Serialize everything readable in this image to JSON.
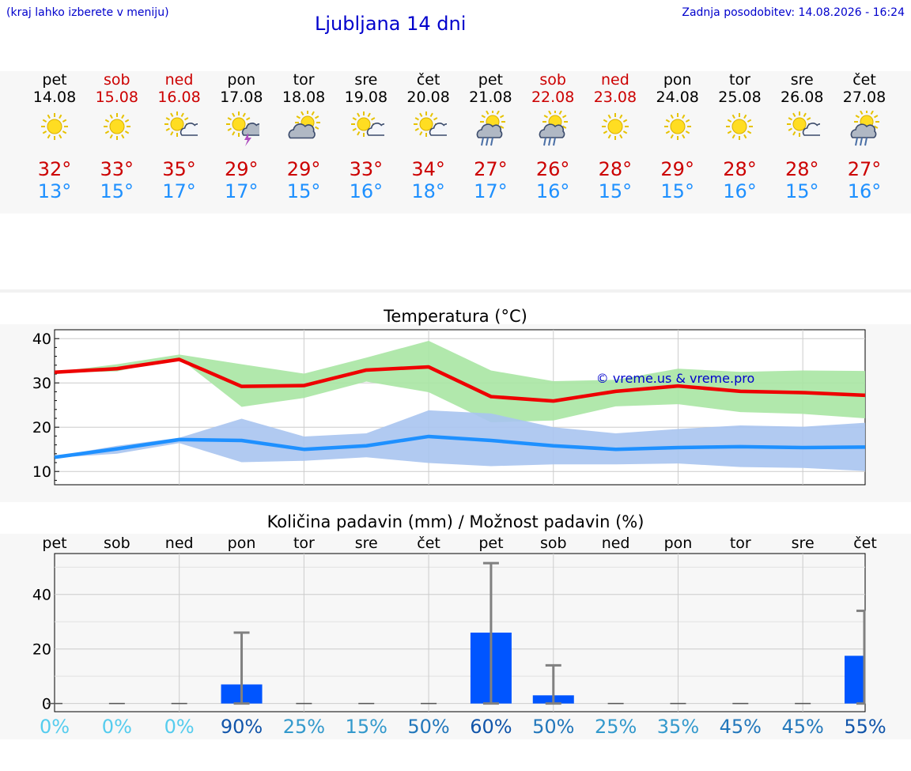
{
  "header": {
    "hint": "(kraj lahko izberete v meniju)",
    "title": "Ljubljana 14 dni",
    "updated": "Zadnja posodobitev: 14.08.2026 - 16:24"
  },
  "days": [
    {
      "name": "pet",
      "date": "14.08",
      "weekend": false,
      "icon": "sun-icon",
      "max": "32°",
      "min": "13°"
    },
    {
      "name": "sob",
      "date": "15.08",
      "weekend": true,
      "icon": "sun-icon",
      "max": "33°",
      "min": "15°"
    },
    {
      "name": "ned",
      "date": "16.08",
      "weekend": true,
      "icon": "sun-cloud-icon",
      "max": "35°",
      "min": "17°"
    },
    {
      "name": "pon",
      "date": "17.08",
      "weekend": false,
      "icon": "sun-cloud-thunder-icon",
      "max": "29°",
      "min": "17°"
    },
    {
      "name": "tor",
      "date": "18.08",
      "weekend": false,
      "icon": "cloud-sun-icon",
      "max": "29°",
      "min": "15°"
    },
    {
      "name": "sre",
      "date": "19.08",
      "weekend": false,
      "icon": "sun-cloud-icon",
      "max": "33°",
      "min": "16°"
    },
    {
      "name": "čet",
      "date": "20.08",
      "weekend": false,
      "icon": "sun-cloud-icon",
      "max": "34°",
      "min": "18°"
    },
    {
      "name": "pet",
      "date": "21.08",
      "weekend": false,
      "icon": "sun-cloud-rain-icon",
      "max": "27°",
      "min": "17°"
    },
    {
      "name": "sob",
      "date": "22.08",
      "weekend": true,
      "icon": "sun-cloud-rain-icon",
      "max": "26°",
      "min": "16°"
    },
    {
      "name": "ned",
      "date": "23.08",
      "weekend": true,
      "icon": "sun-icon",
      "max": "28°",
      "min": "15°"
    },
    {
      "name": "pon",
      "date": "24.08",
      "weekend": false,
      "icon": "sun-icon",
      "max": "29°",
      "min": "15°"
    },
    {
      "name": "tor",
      "date": "25.08",
      "weekend": false,
      "icon": "sun-icon",
      "max": "28°",
      "min": "16°"
    },
    {
      "name": "sre",
      "date": "26.08",
      "weekend": false,
      "icon": "sun-cloud-icon",
      "max": "28°",
      "min": "15°"
    },
    {
      "name": "čet",
      "date": "27.08",
      "weekend": false,
      "icon": "sun-cloud-rain-icon",
      "max": "27°",
      "min": "16°"
    }
  ],
  "colors": {
    "max_line": "#ee0000",
    "max_band": "#a8e6a3",
    "min_line": "#1e90ff",
    "min_band": "#a8c4f0",
    "bar": "#0055ff",
    "whisker": "#808080",
    "weekend": "#cc0000",
    "title": "#0000cc"
  },
  "watermark": "© vreme.us & vreme.pro",
  "chart_data": [
    {
      "type": "line",
      "title": "Temperatura (°C)",
      "x": [
        "pet",
        "sob",
        "ned",
        "pon",
        "tor",
        "sre",
        "čet",
        "pet",
        "sob",
        "ned",
        "pon",
        "tor",
        "sre",
        "čet"
      ],
      "ylim": [
        7,
        42
      ],
      "yticks": [
        10,
        20,
        30,
        40
      ],
      "grid": true,
      "series": [
        {
          "role": "max",
          "values": [
            32.4,
            33.2,
            35.3,
            29.2,
            29.4,
            32.9,
            33.6,
            26.9,
            25.9,
            28.1,
            29.3,
            28.1,
            27.8,
            27.2
          ],
          "band_low": [
            32.3,
            32.6,
            35.6,
            24.6,
            26.6,
            30.3,
            27.9,
            21.1,
            21.5,
            24.7,
            25.2,
            23.4,
            23.0,
            22.0
          ],
          "band_high": [
            32.5,
            34.2,
            36.4,
            34.2,
            32.1,
            35.7,
            39.5,
            32.8,
            30.4,
            30.7,
            33.2,
            32.5,
            32.8,
            32.7
          ]
        },
        {
          "role": "min",
          "values": [
            13.2,
            15.1,
            17.2,
            17.0,
            15.0,
            15.8,
            17.9,
            17.0,
            15.8,
            15.0,
            15.4,
            15.6,
            15.4,
            15.5
          ],
          "band_low": [
            13.1,
            14.0,
            16.4,
            12.1,
            12.4,
            13.2,
            11.9,
            11.2,
            11.6,
            11.6,
            11.8,
            11.0,
            10.8,
            10.1
          ],
          "band_high": [
            13.4,
            15.8,
            17.6,
            21.9,
            17.9,
            18.6,
            23.8,
            23.1,
            20.0,
            18.6,
            19.6,
            20.4,
            20.1,
            21.0
          ]
        }
      ]
    },
    {
      "type": "bar",
      "title": "Količina padavin (mm) / Možnost padavin (%)",
      "categories": [
        "pet",
        "sob",
        "ned",
        "pon",
        "tor",
        "sre",
        "čet",
        "pet",
        "sob",
        "ned",
        "pon",
        "tor",
        "sre",
        "čet"
      ],
      "values": [
        0,
        0,
        0,
        7,
        0,
        0,
        0,
        26,
        3,
        0,
        0,
        0,
        0,
        17.5
      ],
      "whisker_high": [
        0,
        0,
        0,
        26,
        0,
        0,
        0,
        51.5,
        14,
        0,
        0,
        0,
        0,
        34
      ],
      "ylim": [
        -3,
        55
      ],
      "yticks": [
        0,
        20,
        40
      ],
      "grid": true,
      "chance_labels": [
        "0%",
        "0%",
        "0%",
        "90%",
        "25%",
        "15%",
        "50%",
        "60%",
        "50%",
        "25%",
        "35%",
        "45%",
        "45%",
        "55%"
      ],
      "chance_colors": [
        "#55ccee",
        "#55ccee",
        "#55ccee",
        "#1155aa",
        "#3399cc",
        "#3399cc",
        "#2277bb",
        "#1155aa",
        "#2277bb",
        "#3399cc",
        "#3399cc",
        "#2277bb",
        "#2277bb",
        "#1155aa"
      ]
    }
  ]
}
